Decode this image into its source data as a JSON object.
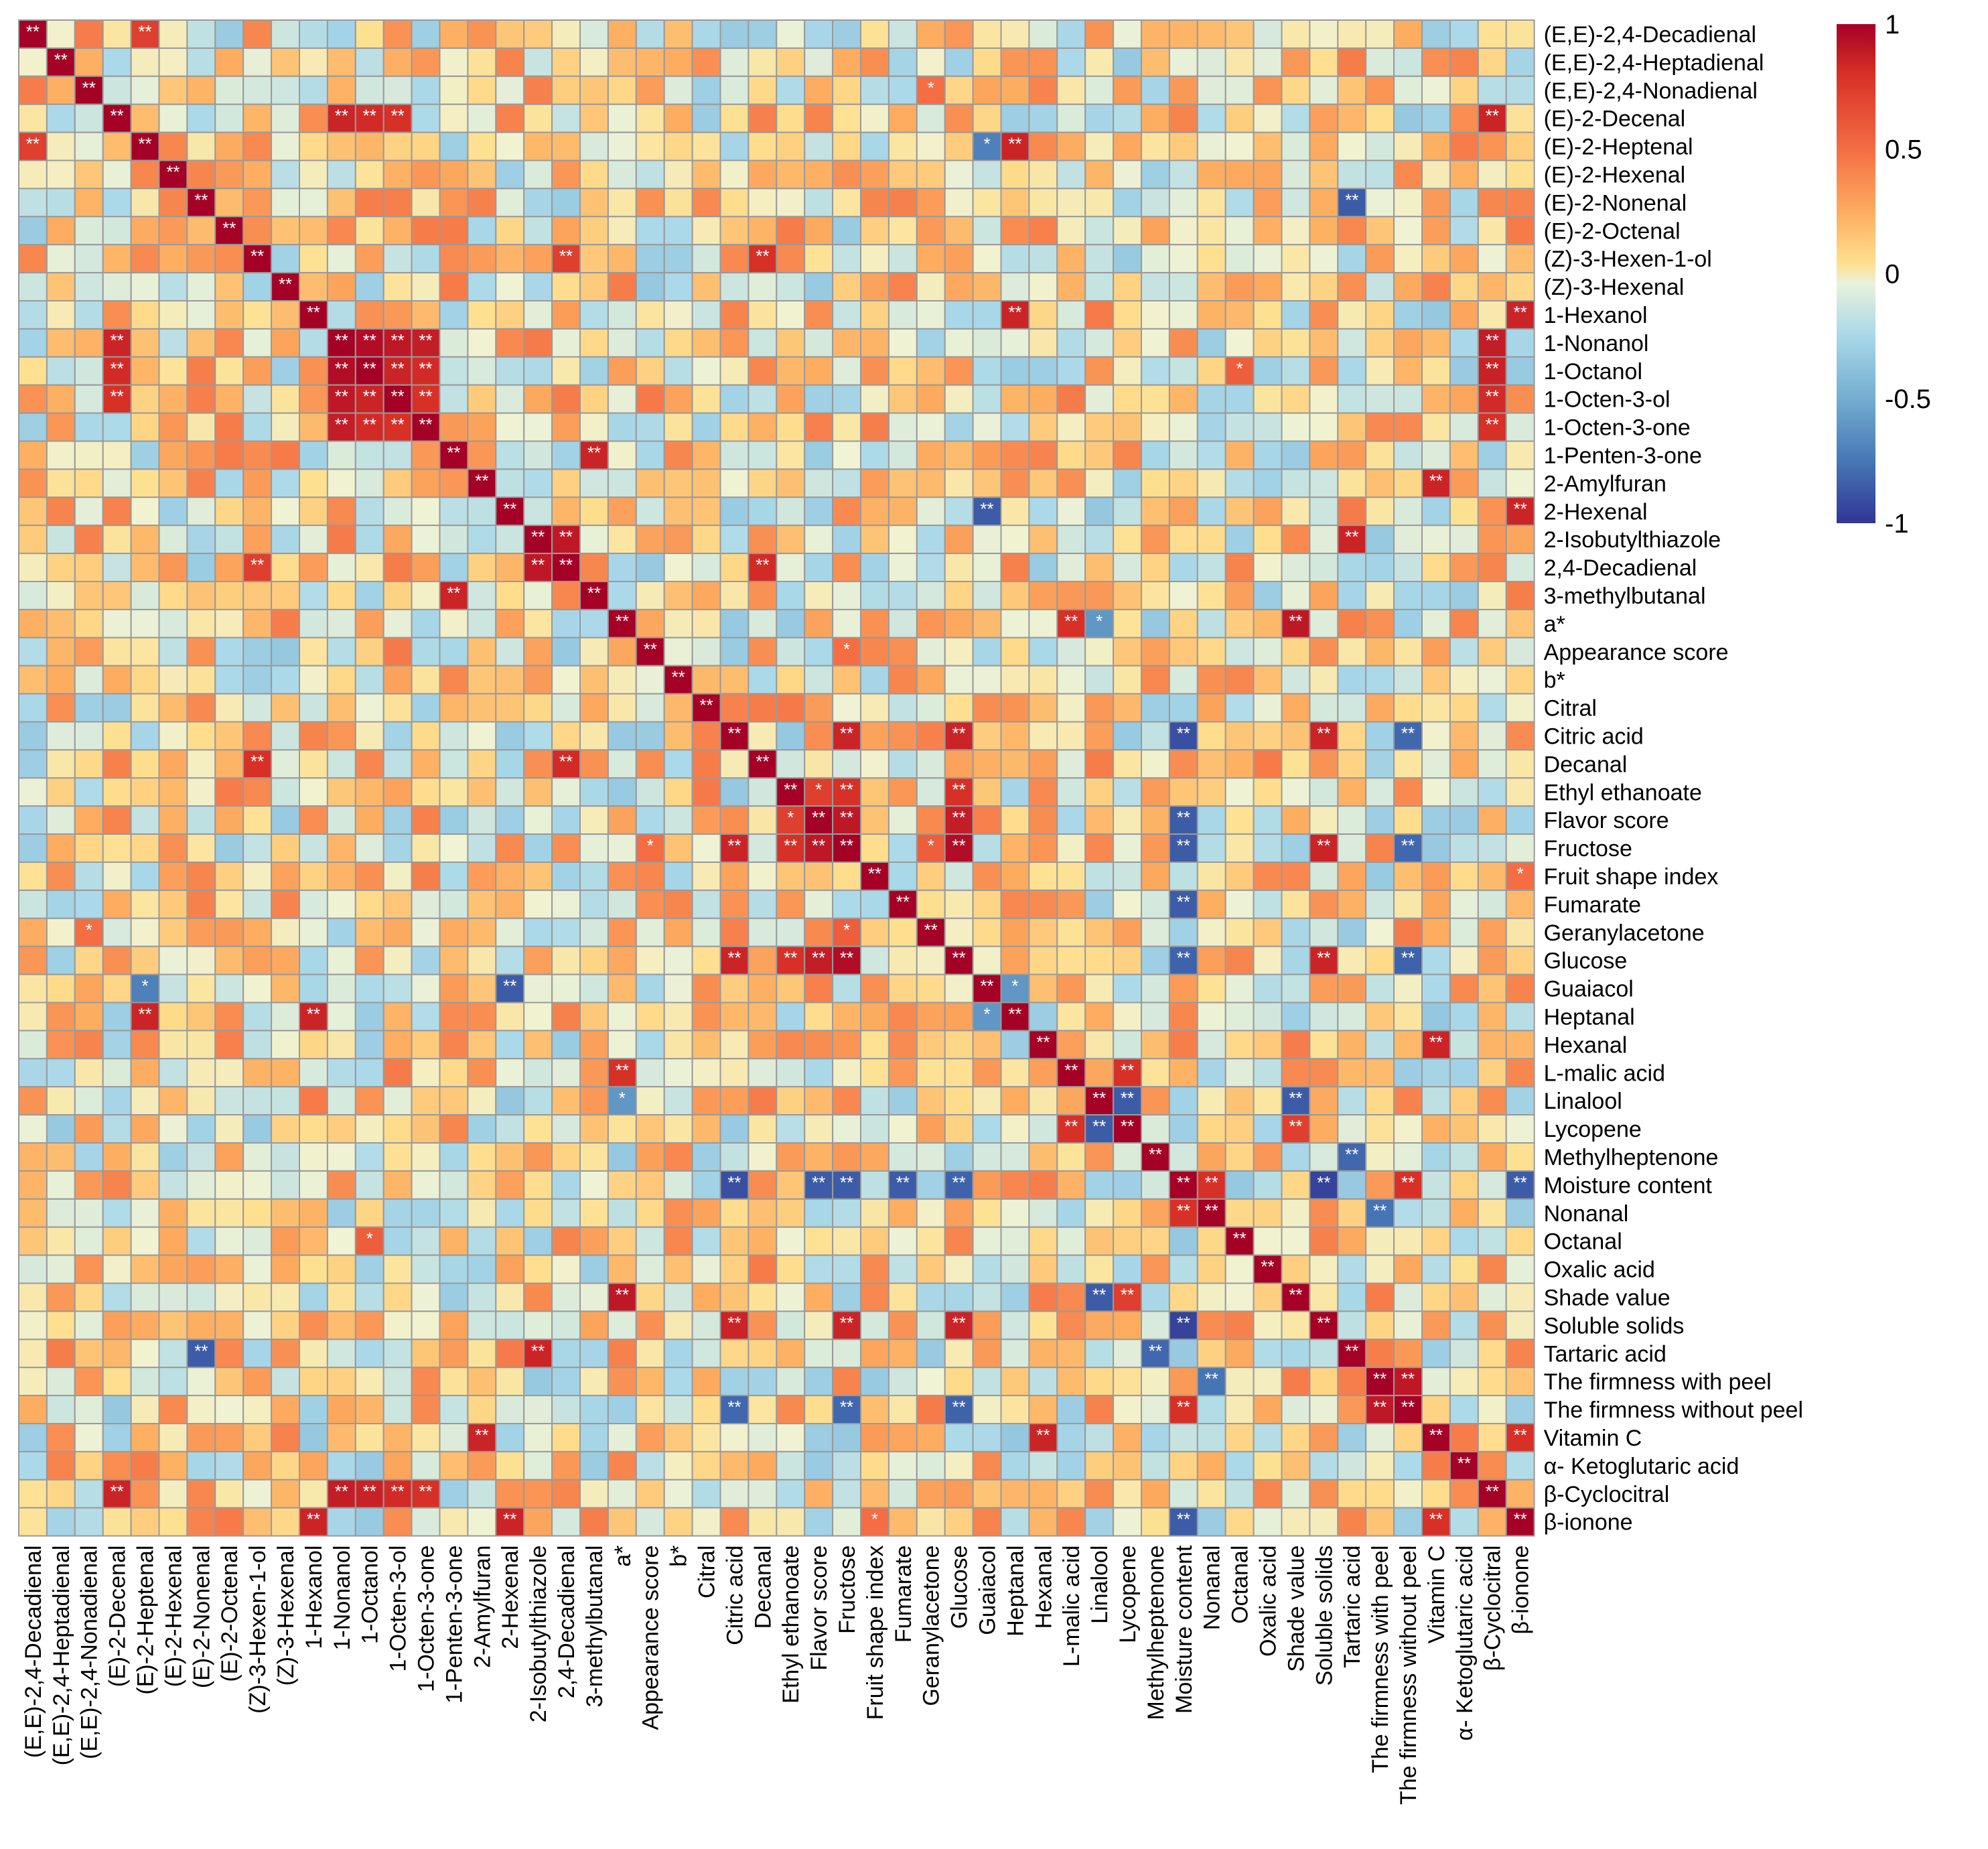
{
  "chart_data": {
    "type": "heatmap",
    "title": "",
    "xlabel": "",
    "ylabel": "",
    "row_labels": [
      "(E,E)-2,4-Decadienal",
      "(E,E)-2,4-Heptadienal",
      "(E,E)-2,4-Nonadienal",
      "(E)-2-Decenal",
      "(E)-2-Heptenal",
      "(E)-2-Hexenal",
      "(E)-2-Nonenal",
      "(E)-2-Octenal",
      "(Z)-3-Hexen-1-ol",
      "(Z)-3-Hexenal",
      "1-Hexanol",
      "1-Nonanol",
      "1-Octanol",
      "1-Octen-3-ol",
      "1-Octen-3-one",
      "1-Penten-3-one",
      "2-Amylfuran",
      "2-Hexenal",
      "2-Isobutylthiazole",
      "2,4-Decadienal",
      "3-methylbutanal",
      "a*",
      "Appearance score",
      "b*",
      "Citral",
      "Citric acid",
      "Decanal",
      "Ethyl ethanoate",
      "Flavor score",
      "Fructose",
      "Fruit shape index",
      "Fumarate",
      "Geranylacetone",
      "Glucose",
      "Guaiacol",
      "Heptanal",
      "Hexanal",
      "L-malic acid",
      "Linalool",
      "Lycopene",
      "Methylheptenone",
      "Moisture content",
      "Nonanal",
      "Octanal",
      "Oxalic acid",
      "Shade value",
      "Soluble solids",
      "Tartaric acid",
      "The firmness with peel",
      "The firmness without peel",
      "Vitamin C",
      "α- Ketoglutaric acid",
      "β-Cyclocitral",
      "β-ionone"
    ],
    "column_labels": [
      "(E,E)-2,4-Decadienal",
      "(E,E)-2,4-Heptadienal",
      "(E,E)-2,4-Nonadienal",
      "(E)-2-Decenal",
      "(E)-2-Heptenal",
      "(E)-2-Hexenal",
      "(E)-2-Nonenal",
      "(E)-2-Octenal",
      "(Z)-3-Hexen-1-ol",
      "(Z)-3-Hexenal",
      "1-Hexanol",
      "1-Nonanol",
      "1-Octanol",
      "1-Octen-3-ol",
      "1-Octen-3-one",
      "1-Penten-3-one",
      "2-Amylfuran",
      "2-Hexenal",
      "2-Isobutylthiazole",
      "2,4-Decadienal",
      "3-methylbutanal",
      "a*",
      "Appearance score",
      "b*",
      "Citral",
      "Citric acid",
      "Decanal",
      "Ethyl ethanoate",
      "Flavor score",
      "Fructose",
      "Fruit shape index",
      "Fumarate",
      "Geranylacetone",
      "Glucose",
      "Guaiacol",
      "Heptanal",
      "Hexanal",
      "L-malic acid",
      "Linalool",
      "Lycopene",
      "Methylheptenone",
      "Moisture content",
      "Nonanal",
      "Octanal",
      "Oxalic acid",
      "Shade value",
      "Soluble solids",
      "Tartaric acid",
      "The firmness with peel",
      "The firmness without peel",
      "Vitamin C",
      "α- Ketoglutaric acid",
      "β-Cyclocitral",
      "β-ionone"
    ],
    "value_range": [
      -1,
      1
    ],
    "colorbar": {
      "ticks": [
        1,
        0.5,
        0,
        -0.5,
        -1
      ],
      "tick_labels": [
        "1",
        "0.5",
        "0",
        "-0.5",
        "-1"
      ],
      "colors": {
        "high": "#b2182b",
        "mid_high": "#f46d43",
        "mid": "#ffffbf",
        "mid_low": "#74add1",
        "low": "#313695"
      }
    },
    "grid_color": "#9a9a9a",
    "significance_markers": {
      "p05": "*",
      "p01": "**"
    },
    "cell_values_note_key": "values are pairwise correlation coefficients, estimated from cell colour",
    "strong_pairs": [
      [
        "1-Nonanol",
        "1-Octanol",
        0.95,
        "**"
      ],
      [
        "1-Nonanol",
        "1-Octen-3-ol",
        0.9,
        "**"
      ],
      [
        "1-Nonanol",
        "1-Octen-3-one",
        0.88,
        "**"
      ],
      [
        "1-Octanol",
        "1-Octen-3-ol",
        0.85,
        "**"
      ],
      [
        "1-Octanol",
        "1-Octen-3-one",
        0.82,
        "**"
      ],
      [
        "1-Octen-3-ol",
        "1-Octen-3-one",
        0.8,
        "**"
      ],
      [
        "(E)-2-Decenal",
        "1-Nonanol",
        0.85,
        "**"
      ],
      [
        "(E)-2-Decenal",
        "1-Octanol",
        0.82,
        "**"
      ],
      [
        "(E)-2-Decenal",
        "1-Octen-3-ol",
        0.8,
        "**"
      ],
      [
        "(E)-2-Decenal",
        "β-Cyclocitral",
        0.85,
        "**"
      ],
      [
        "1-Nonanol",
        "β-Cyclocitral",
        0.88,
        "**"
      ],
      [
        "1-Octanol",
        "β-Cyclocitral",
        0.86,
        "**"
      ],
      [
        "1-Octen-3-ol",
        "β-Cyclocitral",
        0.82,
        "**"
      ],
      [
        "1-Octen-3-one",
        "β-Cyclocitral",
        0.8,
        "**"
      ],
      [
        "1-Penten-3-one",
        "3-methylbutanal",
        0.85,
        "**"
      ],
      [
        "2-Isobutylthiazole",
        "2,4-Decadienal",
        0.9,
        "**"
      ],
      [
        "(Z)-3-Hexen-1-ol",
        "2,4-Decadienal",
        0.75,
        "**"
      ],
      [
        "Citric acid",
        "Fructose",
        0.85,
        "**"
      ],
      [
        "Citric acid",
        "Glucose",
        0.85,
        "**"
      ],
      [
        "Fructose",
        "Glucose",
        0.95,
        "**"
      ],
      [
        "Flavor score",
        "Fructose",
        0.9,
        "**"
      ],
      [
        "Flavor score",
        "Glucose",
        0.88,
        "**"
      ],
      [
        "Ethyl ethanoate",
        "Fructose",
        0.8,
        "**"
      ],
      [
        "Ethyl ethanoate",
        "Glucose",
        0.8,
        "**"
      ],
      [
        "Ethyl ethanoate",
        "Flavor score",
        0.75,
        "*"
      ],
      [
        "Citric acid",
        "Soluble solids",
        0.85,
        "**"
      ],
      [
        "Fructose",
        "Soluble solids",
        0.85,
        "**"
      ],
      [
        "Glucose",
        "Soluble solids",
        0.85,
        "**"
      ],
      [
        "Citric acid",
        "Moisture content",
        -0.9,
        "**"
      ],
      [
        "Fructose",
        "Moisture content",
        -0.85,
        "**"
      ],
      [
        "Glucose",
        "Moisture content",
        -0.82,
        "**"
      ],
      [
        "Soluble solids",
        "Moisture content",
        -0.95,
        "**"
      ],
      [
        "Flavor score",
        "Moisture content",
        -0.85,
        "**"
      ],
      [
        "Fumarate",
        "Moisture content",
        -0.85,
        "**"
      ],
      [
        "The firmness with peel",
        "The firmness without peel",
        0.9,
        "**"
      ],
      [
        "Moisture content",
        "The firmness without peel",
        0.8,
        "**"
      ],
      [
        "Citric acid",
        "The firmness without peel",
        -0.8,
        "**"
      ],
      [
        "Fructose",
        "The firmness without peel",
        -0.8,
        "**"
      ],
      [
        "Glucose",
        "The firmness without peel",
        -0.82,
        "**"
      ],
      [
        "a*",
        "Shade value",
        0.9,
        "**"
      ],
      [
        "a*",
        "L-malic acid",
        0.8,
        "**"
      ],
      [
        "Linalool",
        "Lycopene",
        -0.85,
        "**"
      ],
      [
        "L-malic acid",
        "Lycopene",
        0.8,
        "**"
      ],
      [
        "Lycopene",
        "Shade value",
        0.75,
        "**"
      ],
      [
        "Linalool",
        "Shade value",
        -0.85,
        "**"
      ],
      [
        "a*",
        "Linalool",
        -0.6,
        "*"
      ],
      [
        "Guaiacol",
        "2-Hexenal",
        -0.85,
        "**"
      ],
      [
        "Guaiacol",
        "(E)-2-Heptenal",
        -0.7,
        "*"
      ],
      [
        "Heptanal",
        "(E)-2-Heptenal",
        0.85,
        "**"
      ],
      [
        "Heptanal",
        "1-Hexanol",
        0.85,
        "**"
      ],
      [
        "Heptanal",
        "Guaiacol",
        -0.6,
        "*"
      ],
      [
        "Tartaric acid",
        "(E)-2-Nonenal",
        -0.85,
        "**"
      ],
      [
        "Tartaric acid",
        "Methylheptenone",
        -0.8,
        "**"
      ],
      [
        "2-Isobutylthiazole",
        "Tartaric acid",
        0.85,
        "**"
      ],
      [
        "Vitamin C",
        "2-Amylfuran",
        0.85,
        "**"
      ],
      [
        "Vitamin C",
        "Hexanal",
        0.85,
        "**"
      ],
      [
        "Vitamin C",
        "β-ionone",
        0.8,
        "**"
      ],
      [
        "β-ionone",
        "1-Hexanol",
        0.85,
        "**"
      ],
      [
        "β-ionone",
        "2-Hexenal",
        0.85,
        "**"
      ],
      [
        "β-ionone",
        "Moisture content",
        -0.85,
        "**"
      ],
      [
        "Nonanal",
        "Moisture content",
        0.8,
        "**"
      ],
      [
        "Nonanal",
        "The firmness with peel",
        -0.75,
        "**"
      ],
      [
        "Octanal",
        "1-Octanol",
        0.65,
        "*"
      ],
      [
        "Decanal",
        "(Z)-3-Hexen-1-ol",
        0.8,
        "**"
      ],
      [
        "Decanal",
        "2,4-Decadienal",
        0.82,
        "**"
      ],
      [
        "Geranylacetone",
        "Fructose",
        0.65,
        "*"
      ],
      [
        "Fruit shape index",
        "β-ionone",
        0.6,
        "*"
      ],
      [
        "Appearance score",
        "Fructose",
        0.6,
        "*"
      ],
      [
        "(E,E)-2,4-Decadienal",
        "(E)-2-Heptenal",
        0.75,
        "**"
      ],
      [
        "(E,E)-2,4-Nonadienal",
        "Geranylacetone",
        0.6,
        "*"
      ],
      [
        "(E)-2-Octenal",
        "(E)-2-Nonenal",
        0.3,
        ""
      ]
    ]
  }
}
